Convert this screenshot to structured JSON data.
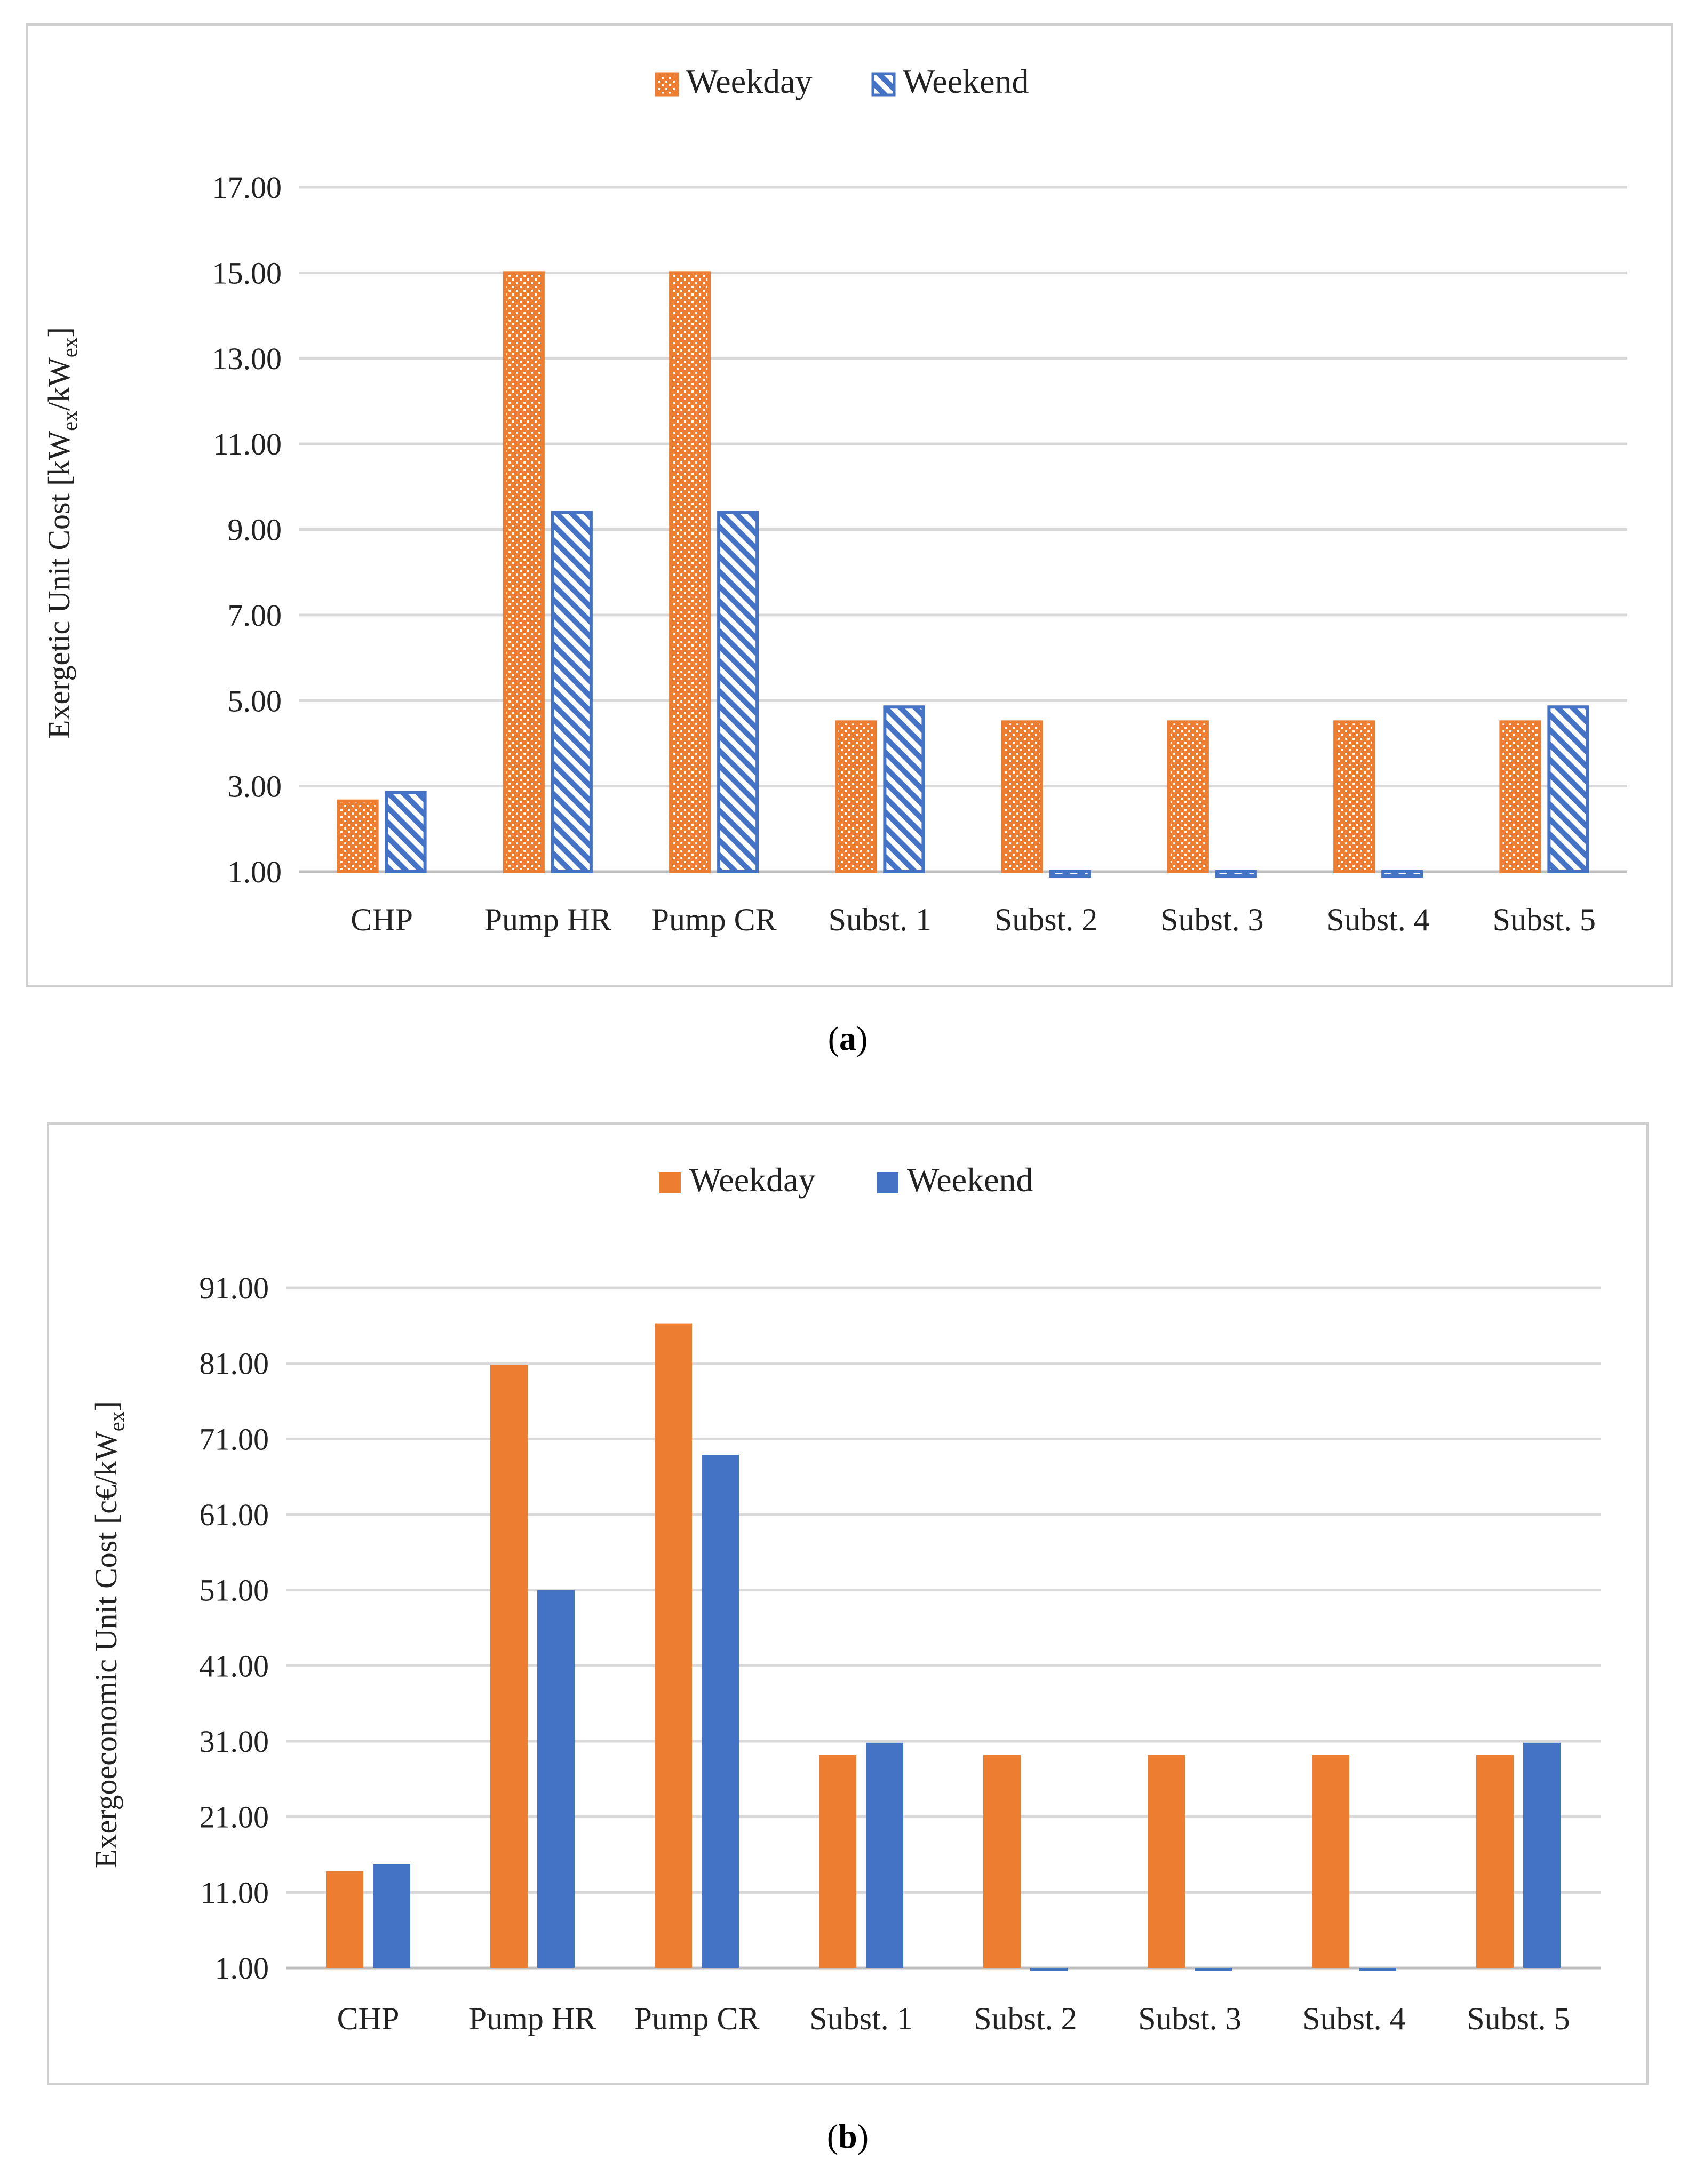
{
  "colors": {
    "weekday": "#ED7D31",
    "weekend": "#4472C4",
    "grid": "#D9D9D9",
    "frame": "#D0D0D0",
    "axis": "#BFBFBF"
  },
  "chart_data": [
    {
      "panel": "a",
      "caption_letter": "a",
      "type": "bar",
      "style": "patterned",
      "categories": [
        "CHP",
        "Pump HR",
        "Pump CR",
        "Subst. 1",
        "Subst. 2",
        "Subst. 3",
        "Subst. 4",
        "Subst. 5"
      ],
      "series": [
        {
          "name": "Weekday",
          "values": [
            2.65,
            15.0,
            15.0,
            4.5,
            4.5,
            4.5,
            4.5,
            4.5
          ]
        },
        {
          "name": "Weekend",
          "values": [
            2.85,
            9.4,
            9.4,
            4.85,
            0.9,
            0.9,
            0.9,
            4.85
          ]
        }
      ],
      "ylabel_main": "Exergetic Unit Cost [kW",
      "ylabel_sub1": "ex",
      "ylabel_mid": "/kW",
      "ylabel_sub2": "ex",
      "ylim": [
        1.0,
        17.0
      ],
      "yticks": [
        1.0,
        3.0,
        5.0,
        7.0,
        9.0,
        11.0,
        13.0,
        15.0,
        17.0
      ],
      "ytick_labels": [
        "1.00",
        "3.00",
        "5.00",
        "7.00",
        "9.00",
        "11.00",
        "13.00",
        "15.00",
        "17.00"
      ],
      "legend_position": "top-center",
      "grid": true
    },
    {
      "panel": "b",
      "caption_letter": "b",
      "type": "bar",
      "style": "solid",
      "categories": [
        "CHP",
        "Pump HR",
        "Pump CR",
        "Subst. 1",
        "Subst. 2",
        "Subst. 3",
        "Subst. 4",
        "Subst. 5"
      ],
      "series": [
        {
          "name": "Weekday",
          "values": [
            13.8,
            80.8,
            86.3,
            29.2,
            29.2,
            29.2,
            29.2,
            29.2
          ]
        },
        {
          "name": "Weekend",
          "values": [
            14.7,
            51.0,
            68.9,
            30.8,
            0.6,
            0.6,
            0.6,
            30.8
          ]
        }
      ],
      "ylabel_main": "Exergoeconomic Unit Cost [c€/kW",
      "ylabel_sub1": "ex",
      "ylabel_mid": "",
      "ylabel_sub2": "",
      "ylim": [
        1.0,
        91.0
      ],
      "yticks": [
        1.0,
        11.0,
        21.0,
        31.0,
        41.0,
        51.0,
        61.0,
        71.0,
        81.0,
        91.0
      ],
      "ytick_labels": [
        "1.00",
        "11.00",
        "21.00",
        "31.00",
        "41.00",
        "51.00",
        "61.00",
        "71.00",
        "81.00",
        "91.00"
      ],
      "legend_position": "top-center",
      "grid": true
    }
  ]
}
